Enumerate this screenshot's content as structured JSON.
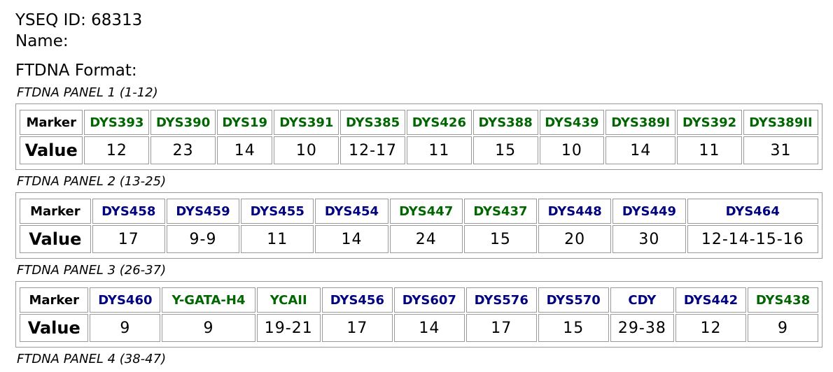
{
  "header": {
    "id_line": "YSEQ ID: 68313",
    "name_line": "Name:",
    "format_line": "FTDNA Format:"
  },
  "panels": [
    {
      "title": "FTDNA PANEL 1 (1-12)",
      "marker_label": "Marker",
      "value_label": "Value",
      "markers": [
        {
          "name": "DYS393",
          "color": "#006600"
        },
        {
          "name": "DYS390",
          "color": "#006600"
        },
        {
          "name": "DYS19",
          "color": "#006600"
        },
        {
          "name": "DYS391",
          "color": "#006600"
        },
        {
          "name": "DYS385",
          "color": "#006600"
        },
        {
          "name": "DYS426",
          "color": "#006600"
        },
        {
          "name": "DYS388",
          "color": "#006600"
        },
        {
          "name": "DYS439",
          "color": "#006600"
        },
        {
          "name": "DYS389I",
          "color": "#006600"
        },
        {
          "name": "DYS392",
          "color": "#006600"
        },
        {
          "name": "DYS389II",
          "color": "#006600"
        }
      ],
      "values": [
        "12",
        "23",
        "14",
        "10",
        "12-17",
        "11",
        "15",
        "10",
        "14",
        "11",
        "31"
      ]
    },
    {
      "title": "FTDNA PANEL 2 (13-25)",
      "marker_label": "Marker",
      "value_label": "Value",
      "markers": [
        {
          "name": "DYS458",
          "color": "#000080"
        },
        {
          "name": "DYS459",
          "color": "#000080"
        },
        {
          "name": "DYS455",
          "color": "#000080"
        },
        {
          "name": "DYS454",
          "color": "#000080"
        },
        {
          "name": "DYS447",
          "color": "#006600"
        },
        {
          "name": "DYS437",
          "color": "#006600"
        },
        {
          "name": "DYS448",
          "color": "#000080"
        },
        {
          "name": "DYS449",
          "color": "#000080"
        },
        {
          "name": "DYS464",
          "color": "#000080"
        }
      ],
      "values": [
        "17",
        "9-9",
        "11",
        "14",
        "24",
        "15",
        "20",
        "30",
        "12-14-15-16"
      ]
    },
    {
      "title": "FTDNA PANEL 3 (26-37)",
      "marker_label": "Marker",
      "value_label": "Value",
      "markers": [
        {
          "name": "DYS460",
          "color": "#000080"
        },
        {
          "name": "Y-GATA-H4",
          "color": "#006600"
        },
        {
          "name": "YCAII",
          "color": "#006600"
        },
        {
          "name": "DYS456",
          "color": "#000080"
        },
        {
          "name": "DYS607",
          "color": "#000080"
        },
        {
          "name": "DYS576",
          "color": "#000080"
        },
        {
          "name": "DYS570",
          "color": "#000080"
        },
        {
          "name": "CDY",
          "color": "#000080"
        },
        {
          "name": "DYS442",
          "color": "#000080"
        },
        {
          "name": "DYS438",
          "color": "#006600"
        }
      ],
      "values": [
        "9",
        "9",
        "19-21",
        "17",
        "14",
        "17",
        "15",
        "29-38",
        "12",
        "9"
      ]
    },
    {
      "title": "FTDNA PANEL 4 (38-47)"
    }
  ]
}
